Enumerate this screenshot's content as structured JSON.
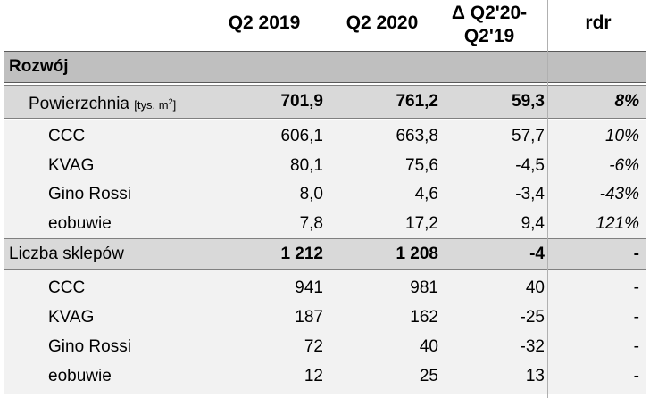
{
  "header": {
    "col1": "Q2 2019",
    "col2": "Q2 2020",
    "col3": "Δ Q2'20-\nQ2'19",
    "col4": "rdr"
  },
  "section_rozwoj": {
    "label": "Rozwój"
  },
  "powierzchnia": {
    "label": "Powierzchnia",
    "unit": "[tys. m",
    "unit_sup": "2",
    "unit_close": "]",
    "q2_2019": "701,9",
    "q2_2020": "761,2",
    "delta": "59,3",
    "rdr": "8%"
  },
  "area_rows": [
    {
      "label": "CCC",
      "q2_2019": "606,1",
      "q2_2020": "663,8",
      "delta": "57,7",
      "rdr": "10%"
    },
    {
      "label": "KVAG",
      "q2_2019": "80,1",
      "q2_2020": "75,6",
      "delta": "-4,5",
      "rdr": "-6%"
    },
    {
      "label": "Gino Rossi",
      "q2_2019": "8,0",
      "q2_2020": "4,6",
      "delta": "-3,4",
      "rdr": "-43%"
    },
    {
      "label": "eobuwie",
      "q2_2019": "7,8",
      "q2_2020": "17,2",
      "delta": "9,4",
      "rdr": "121%"
    }
  ],
  "liczba_sklepow": {
    "label": "Liczba sklepów",
    "q2_2019": "1 212",
    "q2_2020": "1 208",
    "delta": "-4",
    "rdr": "-"
  },
  "store_rows": [
    {
      "label": "CCC",
      "q2_2019": "941",
      "q2_2020": "981",
      "delta": "40",
      "rdr": "-"
    },
    {
      "label": "KVAG",
      "q2_2019": "187",
      "q2_2020": "162",
      "delta": "-25",
      "rdr": "-"
    },
    {
      "label": "Gino Rossi",
      "q2_2019": "72",
      "q2_2020": "40",
      "delta": "-32",
      "rdr": "-"
    },
    {
      "label": "eobuwie",
      "q2_2019": "12",
      "q2_2020": "25",
      "delta": "13",
      "rdr": "-"
    }
  ]
}
